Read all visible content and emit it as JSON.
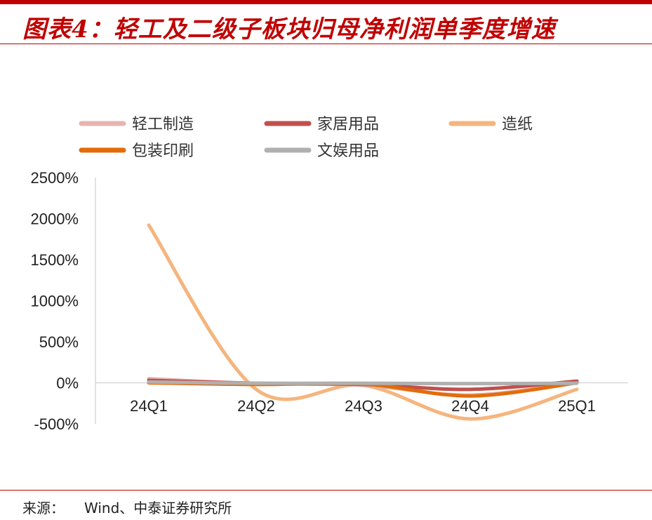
{
  "title": "图表4：轻工及二级子板块归母净利润单季度增速",
  "source": {
    "label": "来源：",
    "text": "Wind、中泰证券研究所"
  },
  "chart_data": {
    "type": "line",
    "categories": [
      "24Q1",
      "24Q2",
      "24Q3",
      "24Q4",
      "25Q1"
    ],
    "y_ticks": [
      "2500%",
      "2000%",
      "1500%",
      "1000%",
      "500%",
      "0%",
      "-500%"
    ],
    "ylim": [
      -500,
      2500
    ],
    "grid": false,
    "legend_position": "top",
    "series": [
      {
        "name": "轻工制造",
        "color": "#e8b4b0",
        "values": [
          50,
          -10,
          -30,
          -150,
          10
        ]
      },
      {
        "name": "家居用品",
        "color": "#c0504d",
        "values": [
          30,
          -5,
          -20,
          -80,
          20
        ]
      },
      {
        "name": "造纸",
        "color": "#f5b57e",
        "values": [
          1920,
          -80,
          -30,
          -440,
          -80
        ]
      },
      {
        "name": "包装印刷",
        "color": "#e36c09",
        "values": [
          0,
          -20,
          -15,
          -160,
          0
        ]
      },
      {
        "name": "文娱用品",
        "color": "#b0b0b0",
        "values": [
          10,
          -5,
          -5,
          -10,
          -5
        ]
      }
    ]
  }
}
